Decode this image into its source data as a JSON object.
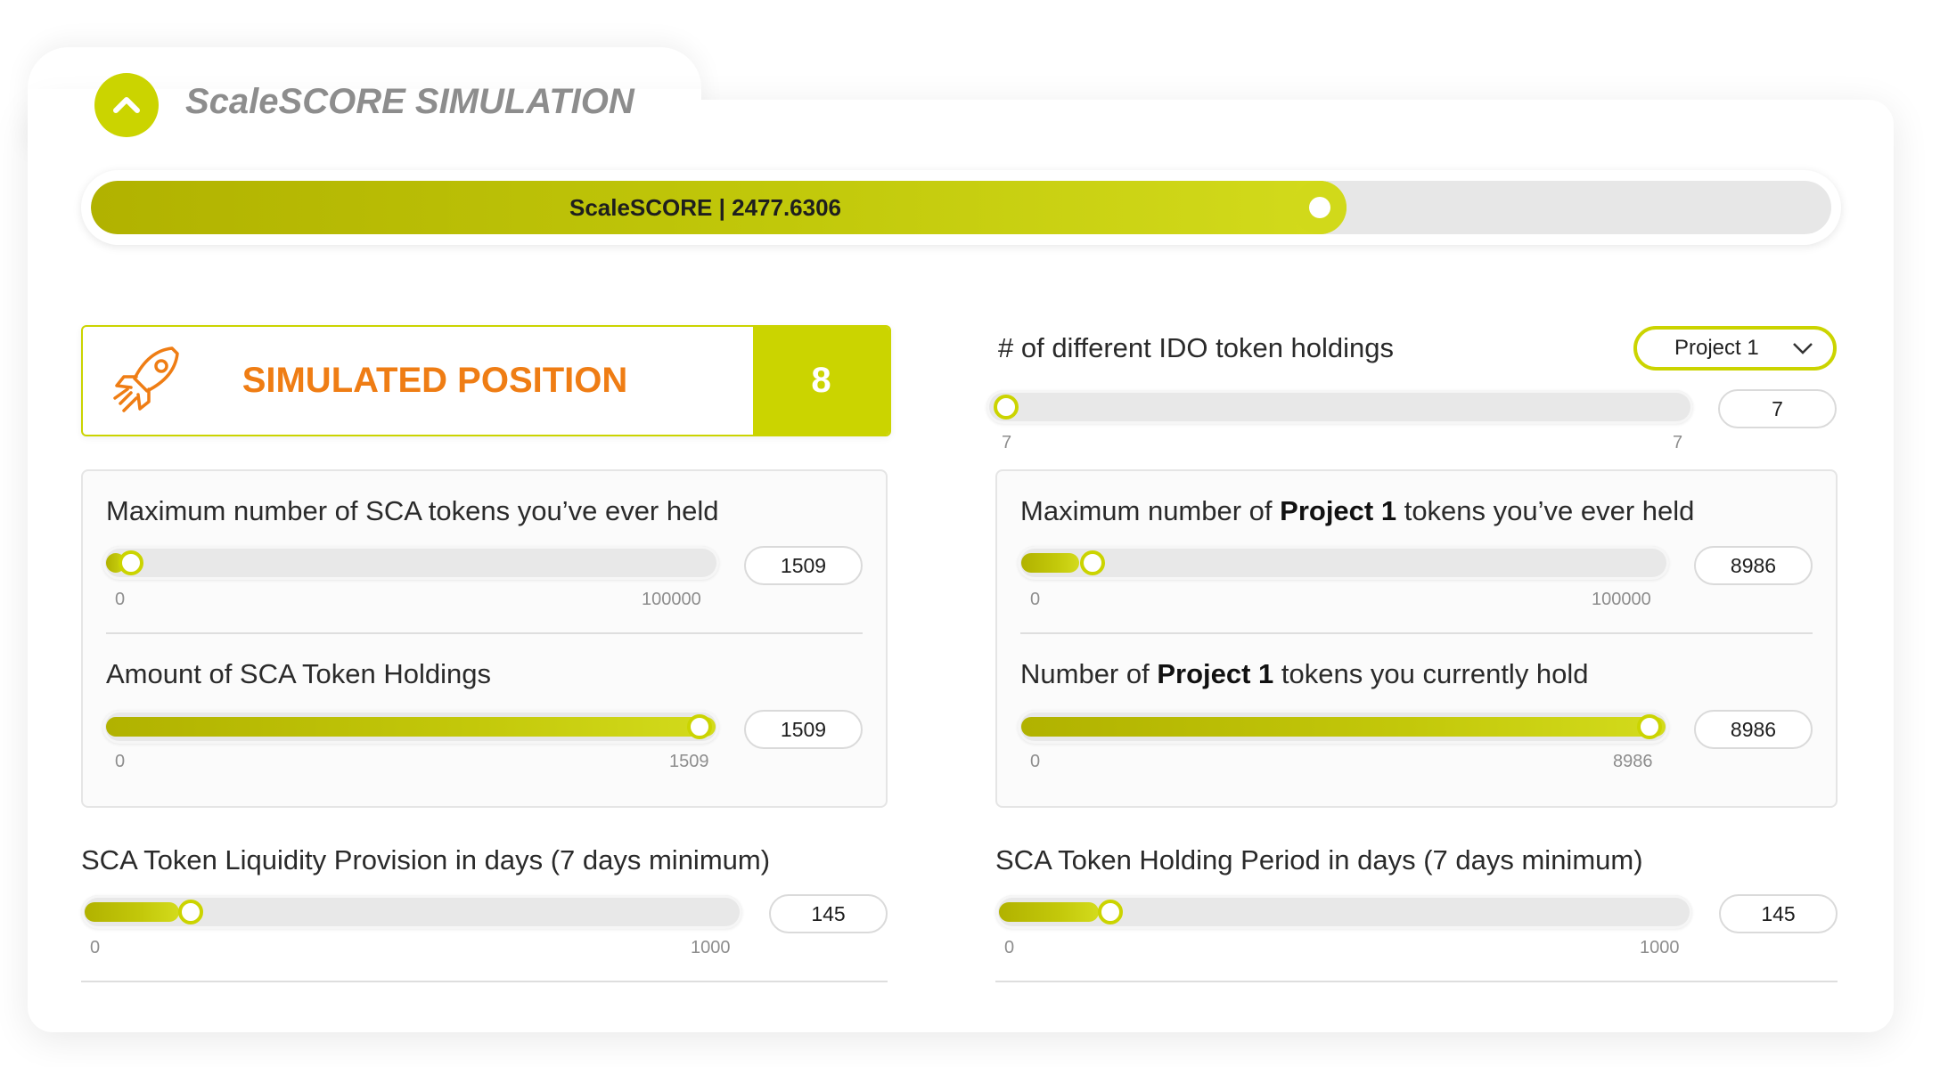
{
  "header": {
    "title": "ScaleSCORE SIMULATION",
    "collapse_icon": "chevron-up-icon"
  },
  "score": {
    "label": "ScaleSCORE | 2477.6306",
    "progress": 0.706
  },
  "simulated_position": {
    "label": "SIMULATED POSITION",
    "value": "8",
    "icon": "rocket-icon"
  },
  "ido": {
    "label": "# of different IDO token holdings",
    "dropdown": "Project 1",
    "value": "7",
    "min": "7",
    "max": "7",
    "progress": 0
  },
  "sca_max": {
    "label": "Maximum number of SCA tokens you’ve ever held",
    "value": "1509",
    "min": "0",
    "max": "100000",
    "progress": 0.015
  },
  "sca_amount": {
    "label": "Amount of SCA Token Holdings",
    "value": "1509",
    "min": "0",
    "max": "1509",
    "progress": 1.0
  },
  "proj_max": {
    "label_pre": "Maximum number of ",
    "label_bold": "Project 1",
    "label_post": " tokens you’ve ever held",
    "value": "8986",
    "min": "0",
    "max": "100000",
    "progress": 0.0899
  },
  "proj_current": {
    "label_pre": "Number of ",
    "label_bold": "Project 1",
    "label_post": " tokens you currently hold",
    "value": "8986",
    "min": "0",
    "max": "8986",
    "progress": 1.0
  },
  "liquidity": {
    "label": "SCA Token Liquidity Provision in days (7 days minimum)",
    "value": "145",
    "min": "0",
    "max": "1000",
    "progress": 0.145
  },
  "holding_period": {
    "label": "SCA Token Holding Period in days (7 days minimum)",
    "value": "145",
    "min": "0",
    "max": "1000",
    "progress": 0.145
  },
  "colors": {
    "accent": "#cbd400",
    "accent_dark": "#b1b200",
    "orange": "#ef7d14",
    "title_gray": "#8d8d8d"
  }
}
